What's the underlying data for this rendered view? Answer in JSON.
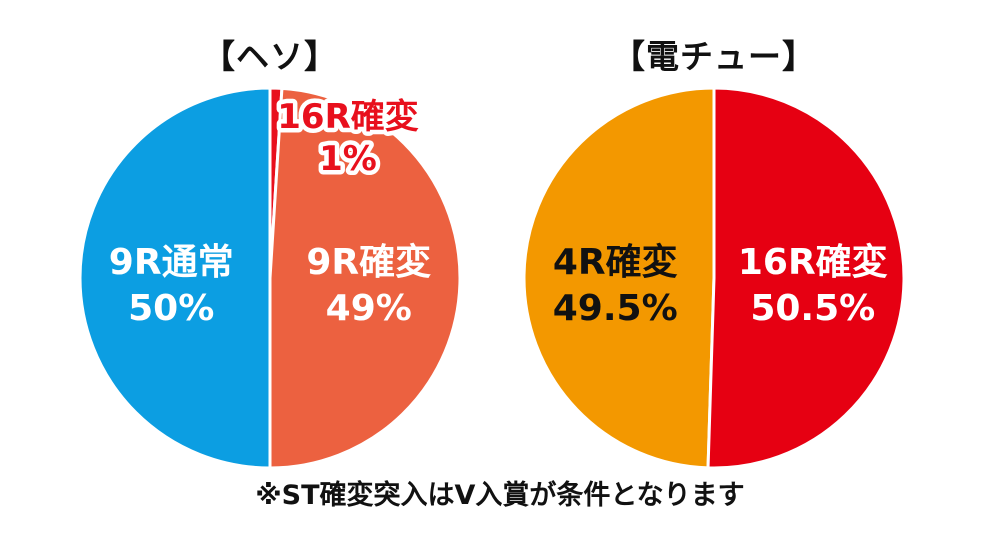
{
  "chart_data": [
    {
      "type": "pie",
      "title": "【ヘソ】",
      "slices": [
        {
          "label": "9R通常",
          "value": 50,
          "value_text": "50%",
          "color": "#0c9ee2",
          "text_color": "#ffffff"
        },
        {
          "label": "16R確変",
          "value": 1,
          "value_text": "1%",
          "color": "#e8101d",
          "text_color": "#ffffff",
          "callout": true
        },
        {
          "label": "9R確変",
          "value": 49,
          "value_text": "49%",
          "color": "#ec6140",
          "text_color": "#ffffff"
        }
      ]
    },
    {
      "type": "pie",
      "title": "【電チュー】",
      "slices": [
        {
          "label": "4R確変",
          "value": 49.5,
          "value_text": "49.5%",
          "color": "#f39800",
          "text_color": "#111111"
        },
        {
          "label": "16R確変",
          "value": 50.5,
          "value_text": "50.5%",
          "color": "#e60012",
          "text_color": "#ffffff"
        }
      ]
    }
  ],
  "footnote": "※ST確変突入はV入賞が条件となります"
}
